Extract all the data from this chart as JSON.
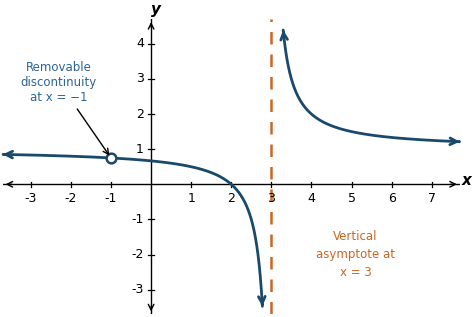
{
  "title": "",
  "xlabel": "x",
  "ylabel": "y",
  "xlim": [
    -3.7,
    7.7
  ],
  "ylim": [
    -3.7,
    4.7
  ],
  "xticks": [
    -3,
    -2,
    -1,
    1,
    2,
    3,
    4,
    5,
    6,
    7
  ],
  "yticks": [
    -3,
    -2,
    -1,
    1,
    2,
    3,
    4
  ],
  "asymptote_x": 3,
  "hole_x": -1,
  "curve_color": "#1a4a6b",
  "asymptote_color": "#cc6622",
  "annotation_color": "#2a6496",
  "annotation_text1": "Removable\ndiscontinuity\nat x = −1",
  "annotation_text2": "Vertical\nasymptote at\nx = 3",
  "bg_color": "#ffffff",
  "y_clip_min": -3.5,
  "y_clip_max": 4.4
}
